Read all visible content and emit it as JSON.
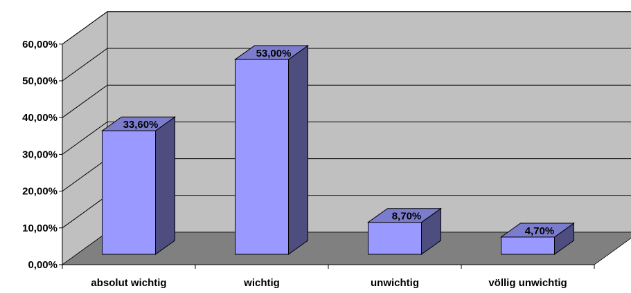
{
  "chart_data": {
    "type": "bar",
    "title": "",
    "xlabel": "",
    "ylabel": "",
    "categories": [
      "absolut wichtig",
      "wichtig",
      "unwichtig",
      "völlig unwichtig"
    ],
    "values": [
      33.6,
      53.0,
      8.7,
      4.7
    ],
    "data_labels": [
      "33,60%",
      "53,00%",
      "8,70%",
      "4,70%"
    ],
    "ylim": [
      0,
      60
    ],
    "y_ticks": [
      0,
      10,
      20,
      30,
      40,
      50,
      60
    ],
    "y_tick_labels": [
      "0,00%",
      "10,00%",
      "20,00%",
      "30,00%",
      "40,00%",
      "50,00%",
      "60,00%"
    ],
    "grid": true,
    "legend": "none",
    "style": "3d-column",
    "colors": {
      "bar_front": "#9999ff",
      "bar_side": "#4d4d80",
      "bar_top": "#7c7ccc",
      "back_wall": "#c0c0c0",
      "floor": "#808080"
    }
  }
}
